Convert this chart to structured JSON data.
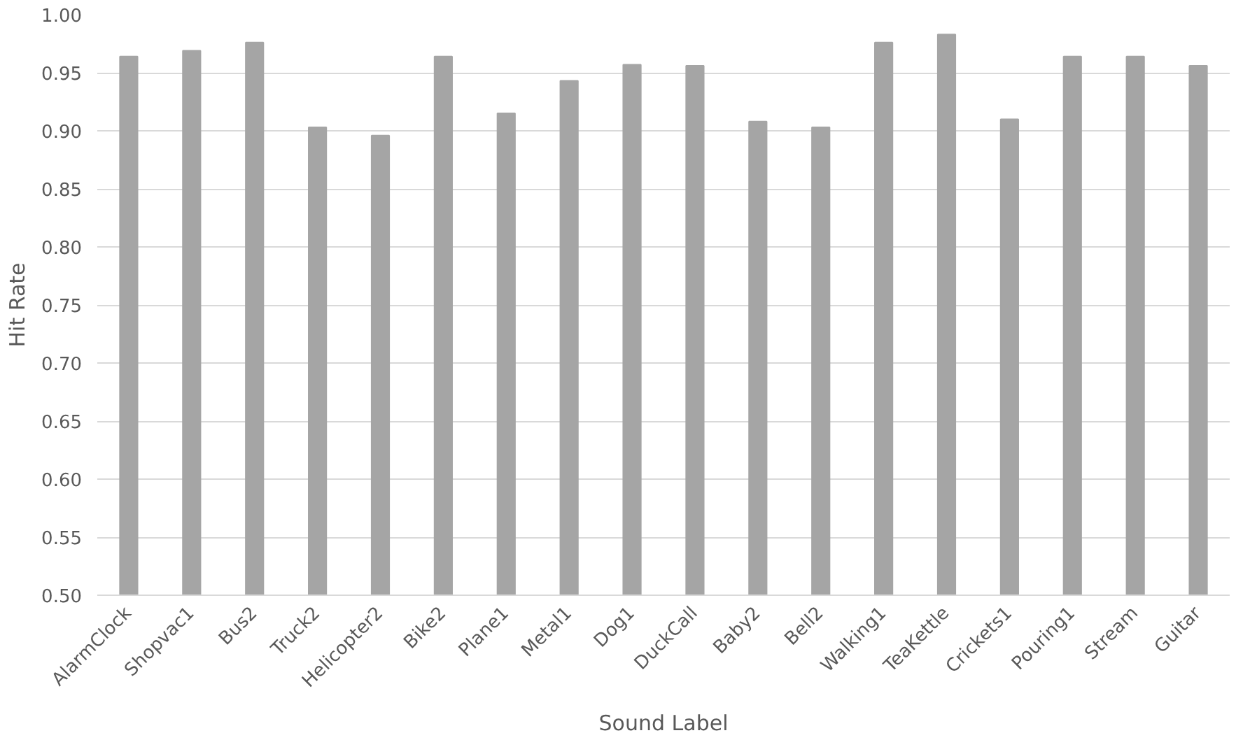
{
  "chart_data": {
    "type": "bar",
    "xlabel": "Sound Label",
    "ylabel": "Hit Rate",
    "categories": [
      "AlarmClock",
      "Shopvac1",
      "Bus2",
      "Truck2",
      "Helicopter2",
      "Bike2",
      "Plane1",
      "Metal1",
      "Dog1",
      "DuckCall",
      "Baby2",
      "Bell2",
      "Walking1",
      "TeaKettle",
      "Crickets1",
      "Pouring1",
      "Stream",
      "Guitar"
    ],
    "values": [
      0.964,
      0.969,
      0.976,
      0.903,
      0.896,
      0.964,
      0.915,
      0.943,
      0.957,
      0.956,
      0.908,
      0.903,
      0.976,
      0.983,
      0.91,
      0.964,
      0.964,
      0.956
    ],
    "color": "#a5a5a5",
    "ylim": [
      0.5,
      1.0
    ],
    "yticks": [
      {
        "value": 0.5,
        "label": "0.50"
      },
      {
        "value": 0.55,
        "label": "0.55"
      },
      {
        "value": 0.6,
        "label": "0.60"
      },
      {
        "value": 0.65,
        "label": "0.65"
      },
      {
        "value": 0.7,
        "label": "0.70"
      },
      {
        "value": 0.75,
        "label": "0.75"
      },
      {
        "value": 0.8,
        "label": "0.80"
      },
      {
        "value": 0.85,
        "label": "0.85"
      },
      {
        "value": 0.9,
        "label": "0.90"
      },
      {
        "value": 0.95,
        "label": "0.95"
      },
      {
        "value": 1.0,
        "label": "1.00"
      }
    ],
    "grid": "y"
  }
}
